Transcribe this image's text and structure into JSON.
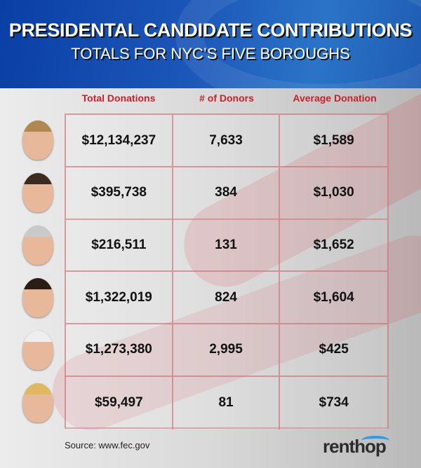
{
  "header": {
    "title": "PRESIDENTAL CANDIDATE CONTRIBUTIONS",
    "subtitle": "TOTALS FOR NYC’S FIVE BOROUGHS"
  },
  "footer": {
    "source": "Source: www.fec.gov",
    "logo": "renthop"
  },
  "colors": {
    "banner": "#1c56b8",
    "header_text": "#c8202b",
    "grid": "#d2787d",
    "logo_arc": "#2f9be8"
  },
  "chart_data": {
    "type": "table",
    "title": "PRESIDENTAL CANDIDATE CONTRIBUTIONS",
    "subtitle": "TOTALS FOR NYC’S FIVE BOROUGHS",
    "columns": [
      "Total Donations",
      "# of Donors",
      "Average Donation"
    ],
    "rows": [
      [
        "$12,134,237",
        "7,633",
        "$1,589"
      ],
      [
        "$395,738",
        "384",
        "$1,030"
      ],
      [
        "$216,511",
        "131",
        "$1,652"
      ],
      [
        "$1,322,019",
        "824",
        "$1,604"
      ],
      [
        "$1,273,380",
        "2,995",
        "$425"
      ],
      [
        "$59,497",
        "81",
        "$734"
      ]
    ],
    "row_icons": [
      "candidate-photo-1",
      "candidate-photo-2",
      "candidate-photo-3",
      "candidate-photo-4",
      "candidate-photo-5",
      "candidate-photo-6"
    ]
  }
}
